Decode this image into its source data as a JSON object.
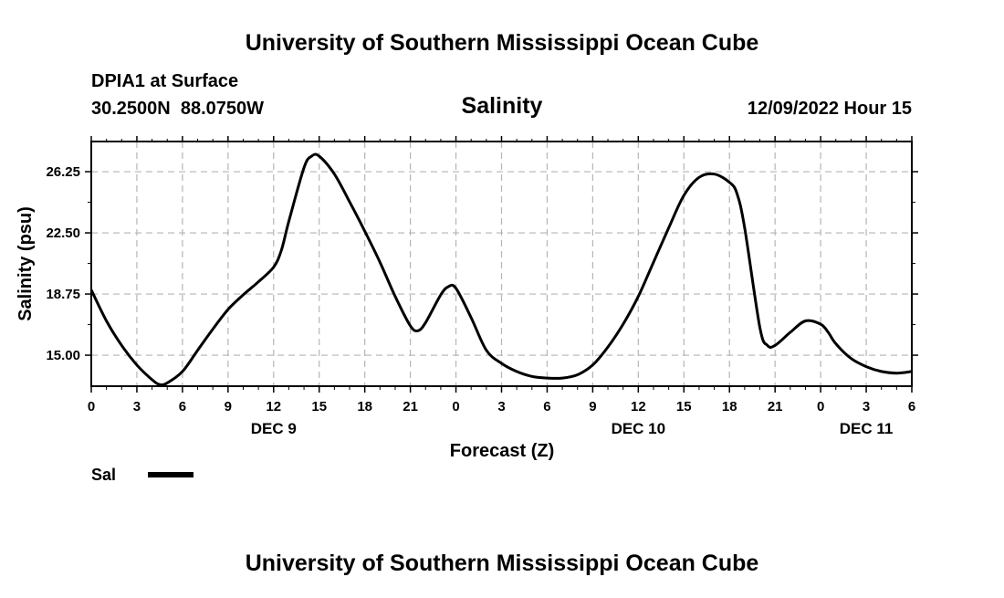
{
  "page": {
    "title_top": "University of Southern Mississippi Ocean Cube",
    "title_bottom": "University of Southern Mississippi Ocean Cube"
  },
  "header": {
    "station": "DPIA1 at Surface",
    "coords": "30.2500N  88.0750W",
    "variable": "Salinity",
    "timestamp": "12/09/2022 Hour 15"
  },
  "legend": {
    "label": "Sal"
  },
  "chart_data": {
    "type": "line",
    "title": "Salinity",
    "xlabel": "Forecast (Z)",
    "ylabel": "Salinity (psu)",
    "xlim": [
      0,
      54
    ],
    "ylim": [
      13.1,
      28.1
    ],
    "grid": true,
    "legend_position": "bottom-left",
    "yticks": [
      15.0,
      18.75,
      22.5,
      26.25
    ],
    "ytick_labels": [
      "15.00",
      "18.75",
      "22.50",
      "26.25"
    ],
    "xticks": [
      0,
      3,
      6,
      9,
      12,
      15,
      18,
      21,
      24,
      27,
      30,
      33,
      36,
      39,
      42,
      45,
      48,
      51,
      54
    ],
    "xtick_labels": [
      "0",
      "3",
      "6",
      "9",
      "12",
      "15",
      "18",
      "21",
      "0",
      "3",
      "6",
      "9",
      "12",
      "15",
      "18",
      "21",
      "0",
      "3",
      "6"
    ],
    "day_labels": [
      {
        "x": 12,
        "label": "DEC 9"
      },
      {
        "x": 36,
        "label": "DEC 10"
      },
      {
        "x": 51,
        "label": "DEC 11"
      }
    ],
    "series": [
      {
        "name": "Sal",
        "color": "#000000",
        "x": [
          0,
          1,
          2,
          3,
          4,
          4.5,
          5,
          6,
          7,
          8,
          9,
          10,
          11,
          12,
          12.5,
          13,
          14,
          14.5,
          15,
          16,
          17,
          18,
          19,
          20,
          21,
          21.5,
          22,
          23,
          23.5,
          24,
          25,
          26,
          27,
          28,
          29,
          30,
          31,
          32,
          33,
          34,
          35,
          36,
          37,
          38,
          39,
          40,
          41,
          42,
          42.5,
          43,
          44,
          44.5,
          45,
          46,
          47,
          48,
          48.5,
          49,
          50,
          51,
          52,
          53,
          54
        ],
        "y": [
          19.0,
          17.1,
          15.6,
          14.4,
          13.5,
          13.2,
          13.3,
          14.0,
          15.3,
          16.6,
          17.8,
          18.7,
          19.5,
          20.4,
          21.4,
          23.2,
          26.5,
          27.2,
          27.2,
          26.1,
          24.4,
          22.6,
          20.7,
          18.6,
          16.8,
          16.5,
          17.0,
          18.7,
          19.2,
          19.1,
          17.3,
          15.3,
          14.5,
          14.0,
          13.7,
          13.6,
          13.6,
          13.8,
          14.4,
          15.5,
          16.9,
          18.6,
          20.7,
          22.8,
          24.8,
          25.9,
          26.1,
          25.6,
          24.9,
          22.8,
          16.7,
          15.6,
          15.6,
          16.4,
          17.1,
          16.9,
          16.4,
          15.7,
          14.8,
          14.3,
          14.0,
          13.9,
          14.0
        ]
      }
    ]
  }
}
